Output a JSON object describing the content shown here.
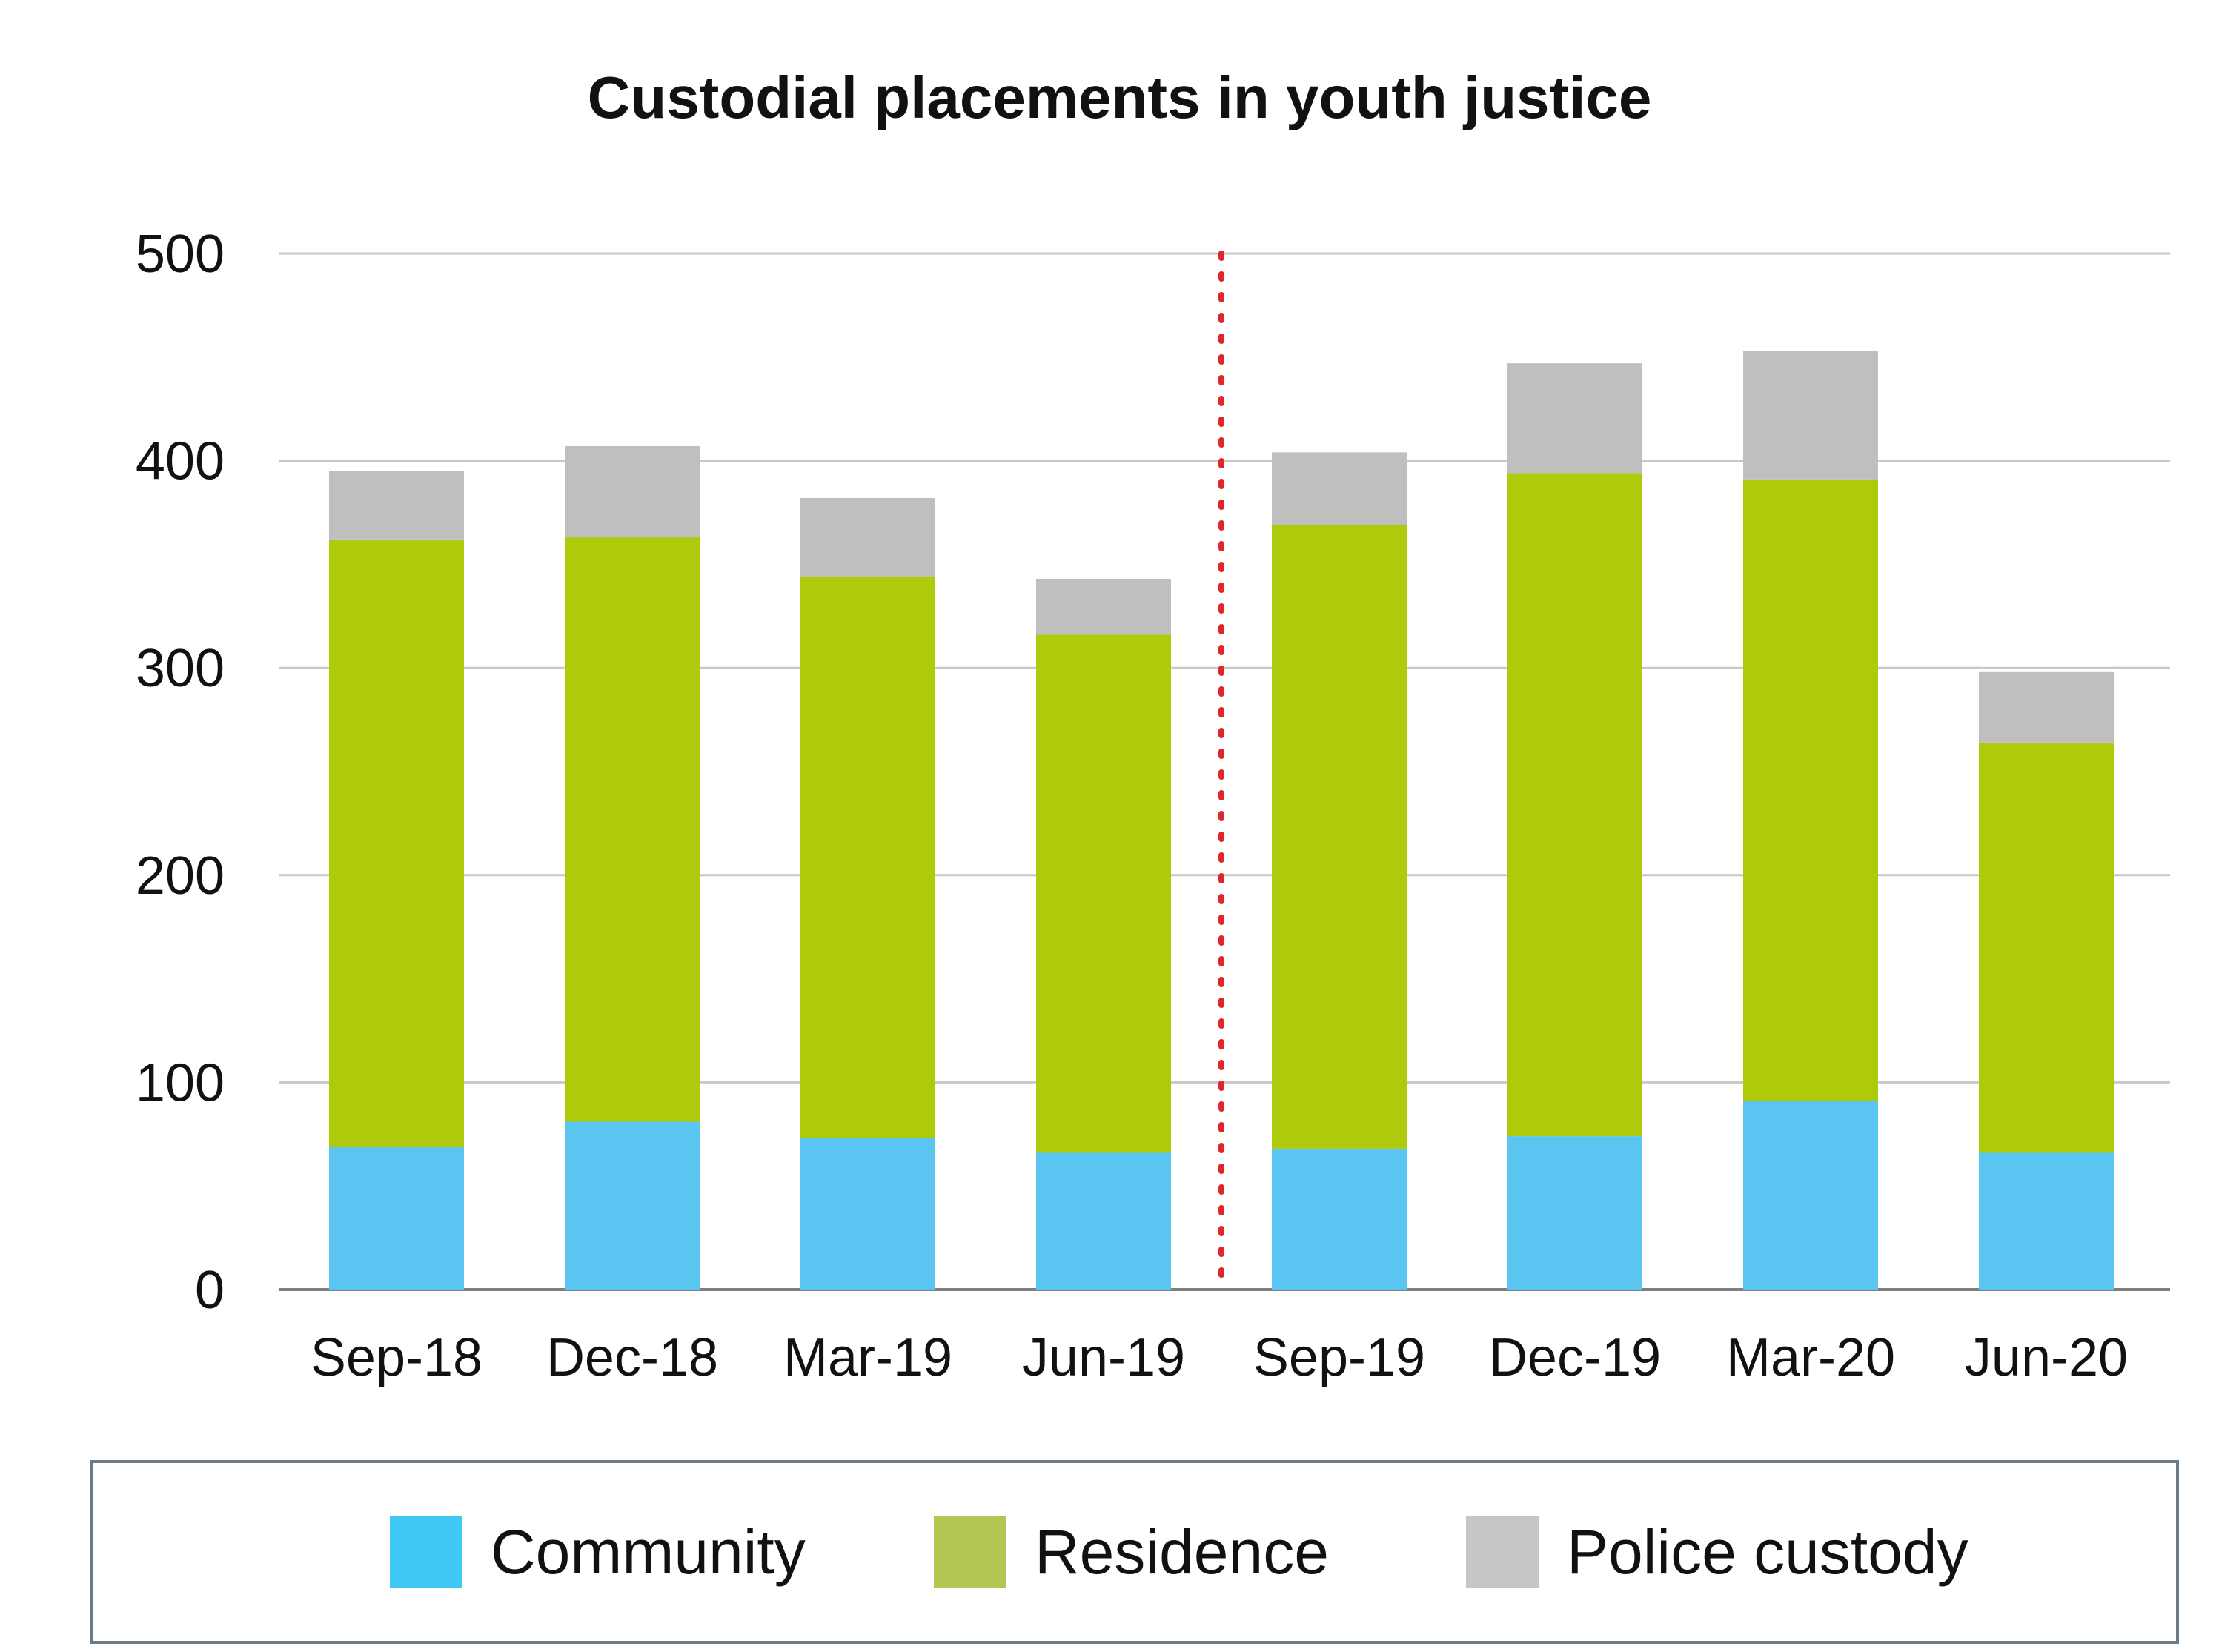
{
  "chart_data": {
    "type": "bar",
    "stacked": true,
    "title": "Custodial placements in youth justice",
    "xlabel": "",
    "ylabel": "",
    "ylim": [
      0,
      500
    ],
    "yticks": [
      0,
      100,
      200,
      300,
      400,
      500
    ],
    "grid": true,
    "categories": [
      "Sep-18",
      "Dec-18",
      "Mar-19",
      "Jun-19",
      "Sep-19",
      "Dec-19",
      "Mar-20",
      "Jun-20"
    ],
    "series": [
      {
        "name": "Community",
        "color": "#5bc5f2",
        "legend_color": "#40c8f4",
        "values": [
          69,
          81,
          73,
          66,
          68,
          74,
          91,
          66
        ]
      },
      {
        "name": "Residence",
        "color": "#afca0b",
        "legend_color": "#b2c652",
        "values": [
          293,
          282,
          271,
          250,
          301,
          320,
          300,
          198
        ]
      },
      {
        "name": "Police custody",
        "color": "#bfbfbf",
        "legend_color": "#c6c6c8",
        "values": [
          33,
          44,
          38,
          27,
          35,
          53,
          62,
          34
        ]
      }
    ],
    "annotations": [
      {
        "type": "vertical-dotted-line",
        "between": [
          "Jun-19",
          "Sep-19"
        ],
        "color": "#e3242b"
      }
    ],
    "legend_position": "bottom"
  }
}
